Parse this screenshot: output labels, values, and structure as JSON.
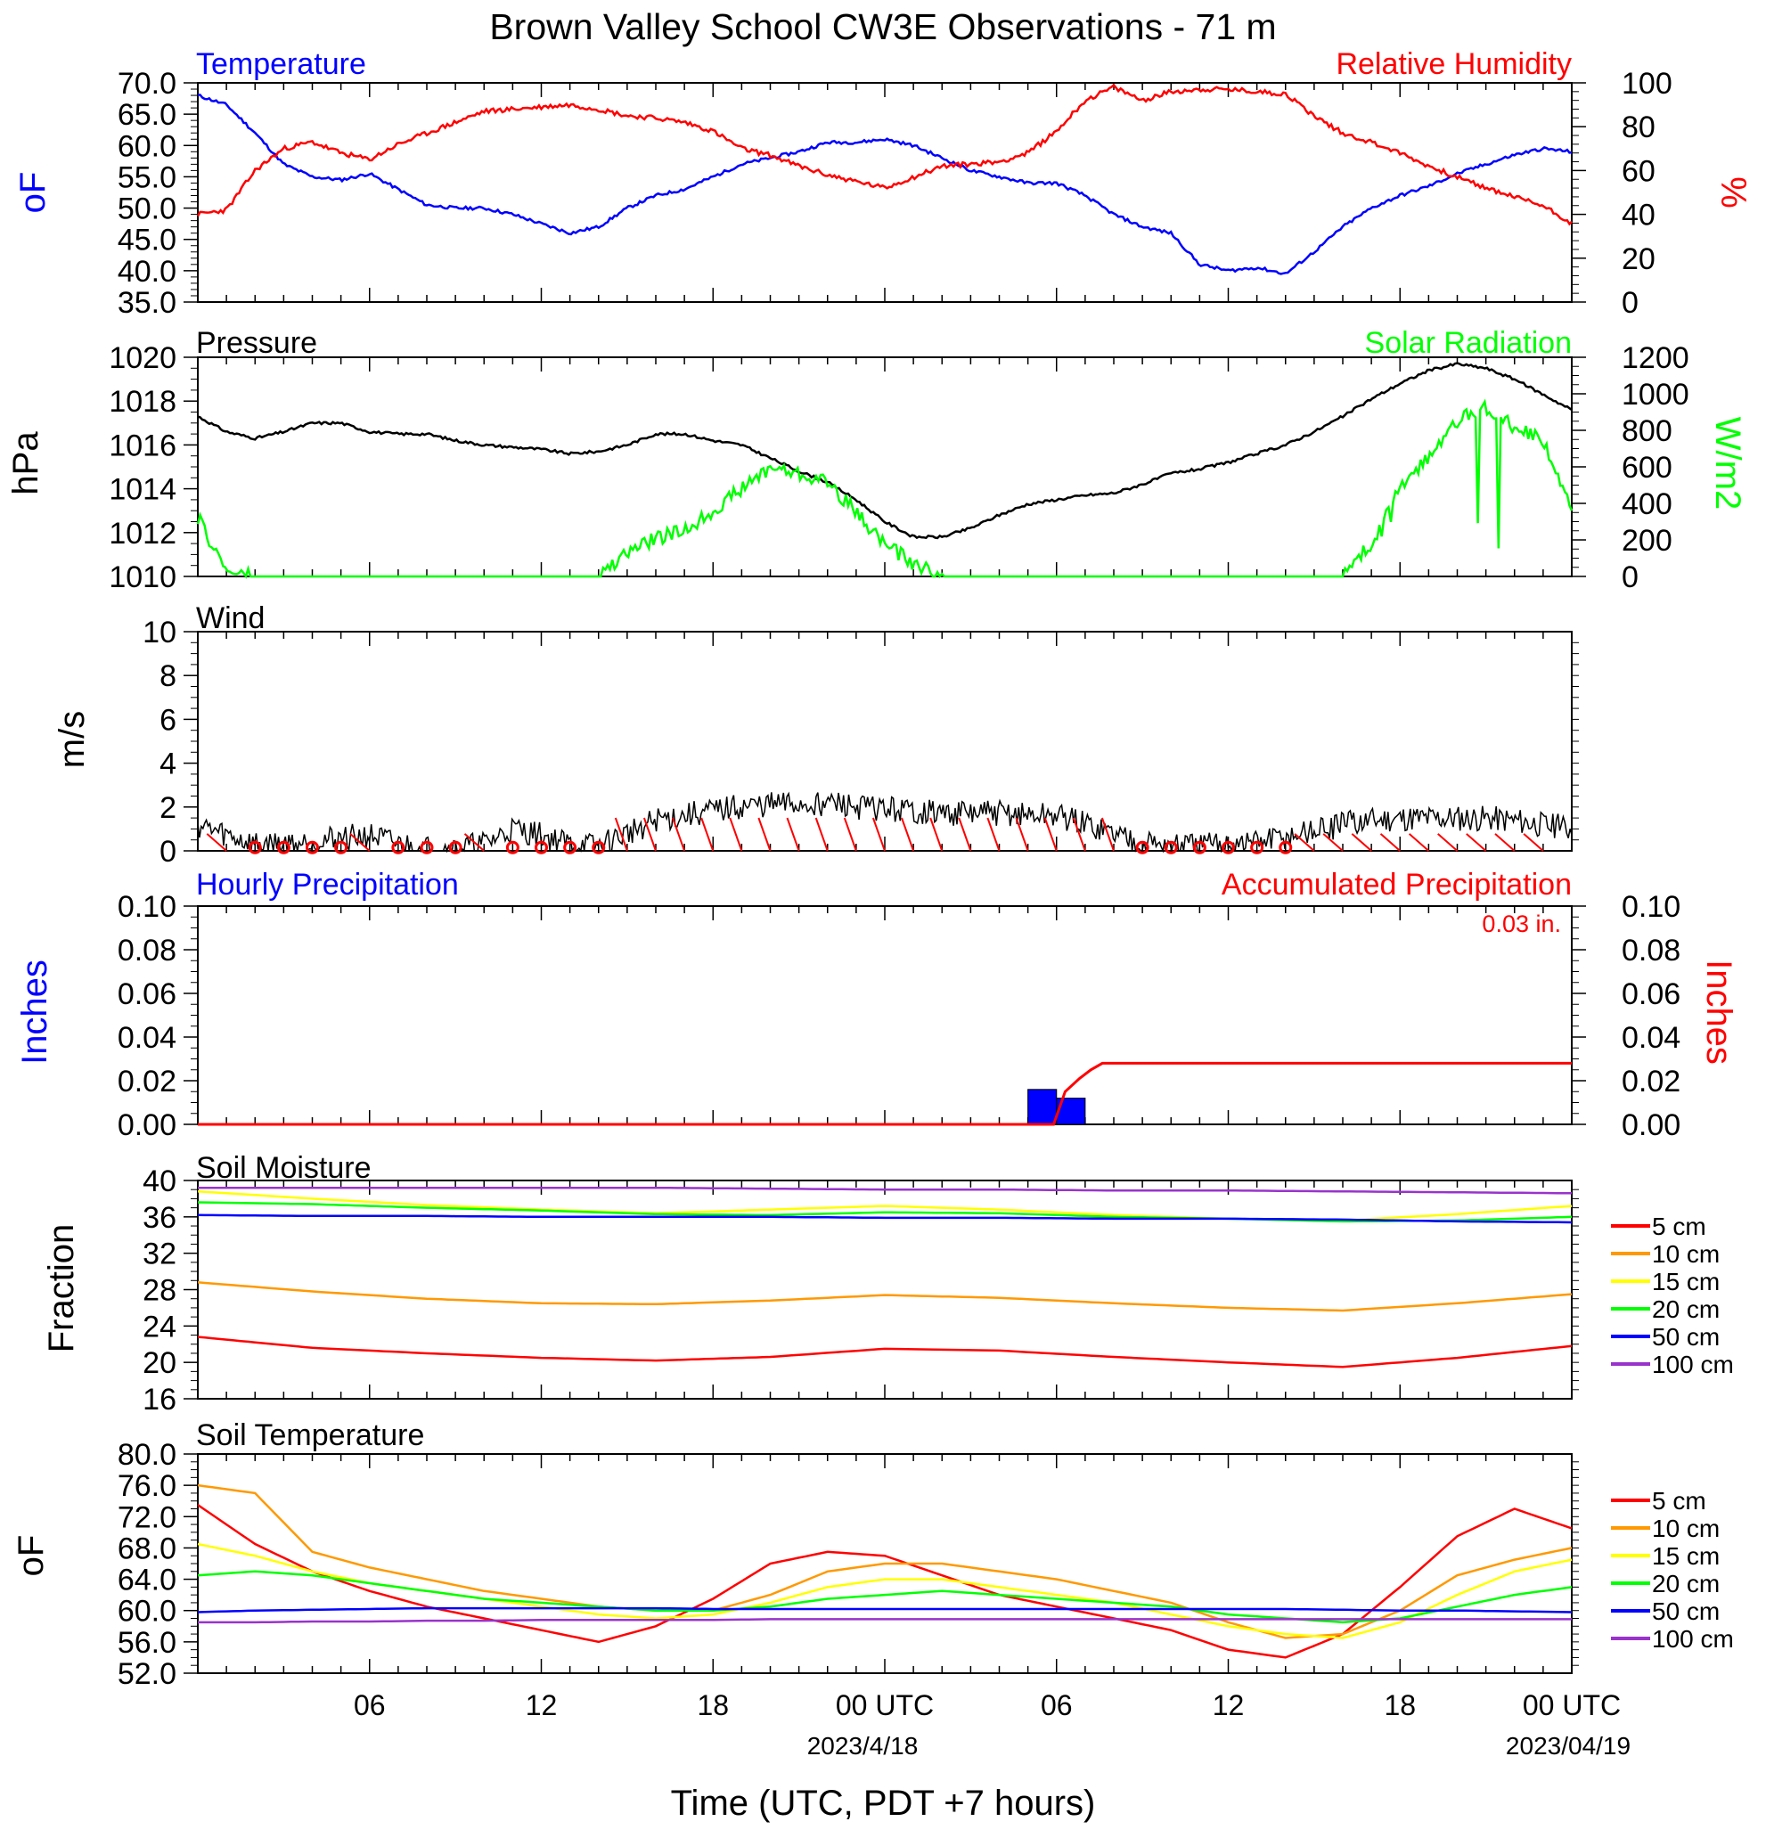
{
  "title": "Brown Valley School CW3E Observations - 71 m",
  "x_axis": {
    "label": "Time (UTC, PDT +7 hours)",
    "ticks": [
      "06",
      "12",
      "18",
      "00 UTC",
      "06",
      "12",
      "18",
      "00 UTC"
    ],
    "dates": [
      "2023/4/18",
      "2023/04/19"
    ],
    "range_hours": [
      0,
      48
    ]
  },
  "colors": {
    "temperature": "#0000ff",
    "humidity": "#ff0000",
    "pressure": "#000000",
    "solar": "#00ff00",
    "wind": "#000000",
    "barb": "#ff0000",
    "precip_hourly": "#0000ff",
    "precip_accum": "#ff0000",
    "depth_5": "#ff0000",
    "depth_10": "#ff9900",
    "depth_15": "#ffff00",
    "depth_20": "#00ff00",
    "depth_50": "#0000ff",
    "depth_100": "#9933cc"
  },
  "panels": {
    "temp_rh": {
      "left_title": "Temperature",
      "right_title": "Relative Humidity",
      "left_unit": "oF",
      "right_unit": "%",
      "left_ticks": [
        "70.0",
        "65.0",
        "60.0",
        "55.0",
        "50.0",
        "45.0",
        "40.0",
        "35.0"
      ],
      "right_ticks": [
        "100",
        "80",
        "60",
        "40",
        "20",
        "0"
      ]
    },
    "pressure_solar": {
      "left_title": "Pressure",
      "right_title": "Solar Radiation",
      "left_unit": "hPa",
      "right_unit": "W/m2",
      "left_ticks": [
        "1020",
        "1018",
        "1016",
        "1014",
        "1012",
        "1010"
      ],
      "right_ticks": [
        "1200",
        "1000",
        "800",
        "600",
        "400",
        "200",
        "0"
      ]
    },
    "wind": {
      "left_title": "Wind",
      "left_unit": "m/s",
      "left_ticks": [
        "10",
        "8",
        "6",
        "4",
        "2",
        "0"
      ]
    },
    "precip": {
      "left_title": "Hourly Precipitation",
      "right_title": "Accumulated Precipitation",
      "total": "0.03 in.",
      "left_unit": "Inches",
      "right_unit": "Inches",
      "left_ticks": [
        "0.10",
        "0.08",
        "0.06",
        "0.04",
        "0.02",
        "0.00"
      ],
      "right_ticks": [
        "0.10",
        "0.08",
        "0.06",
        "0.04",
        "0.02",
        "0.00"
      ]
    },
    "soil_moisture": {
      "left_title": "Soil Moisture",
      "left_unit": "Fraction",
      "left_ticks": [
        "40",
        "36",
        "32",
        "28",
        "24",
        "20",
        "16"
      ],
      "legend": [
        "5 cm",
        "10 cm",
        "15 cm",
        "20 cm",
        "50 cm",
        "100 cm"
      ]
    },
    "soil_temp": {
      "left_title": "Soil Temperature",
      "left_unit": "oF",
      "left_ticks": [
        "80.0",
        "76.0",
        "72.0",
        "68.0",
        "64.0",
        "60.0",
        "56.0",
        "52.0"
      ],
      "legend": [
        "5 cm",
        "10 cm",
        "15 cm",
        "20 cm",
        "50 cm",
        "100 cm"
      ]
    }
  },
  "chart_data": [
    {
      "type": "line",
      "title": "Temperature / Relative Humidity",
      "x_hours": [
        0,
        1,
        2,
        3,
        4,
        5,
        6,
        7,
        8,
        9,
        10,
        11,
        12,
        13,
        14,
        15,
        16,
        17,
        18,
        19,
        20,
        21,
        22,
        23,
        24,
        25,
        26,
        27,
        28,
        29,
        30,
        31,
        32,
        33,
        34,
        35,
        36,
        37,
        38,
        39,
        40,
        41,
        42,
        43,
        44,
        45,
        46,
        47,
        48
      ],
      "series": [
        {
          "name": "Temperature",
          "axis": "left",
          "ylim": [
            35,
            70
          ],
          "values": [
            68,
            66.5,
            62,
            57,
            55,
            54.5,
            55.5,
            53,
            50.5,
            50,
            50,
            49,
            47.5,
            46,
            47,
            50,
            52,
            53,
            55,
            57,
            58,
            59,
            60.5,
            60.5,
            61,
            60,
            58,
            56,
            55,
            54,
            54,
            52,
            49,
            47,
            46,
            41,
            40,
            40.5,
            39.5,
            43,
            47,
            50,
            52,
            53.5,
            55.5,
            57,
            58.5,
            59.5,
            59
          ]
        },
        {
          "name": "Relative Humidity",
          "axis": "right",
          "ylim": [
            0,
            100
          ],
          "values": [
            40,
            42,
            60,
            70,
            73,
            68,
            65,
            72,
            77,
            82,
            87,
            88,
            89,
            90,
            88,
            85,
            84,
            82,
            78,
            70,
            67,
            62,
            58,
            55,
            52,
            57,
            62,
            63,
            64,
            68,
            78,
            92,
            98,
            92,
            96,
            97,
            97,
            96,
            95,
            85,
            77,
            73,
            68,
            62,
            57,
            52,
            48,
            44,
            36
          ]
        }
      ]
    },
    {
      "type": "line",
      "title": "Pressure / Solar Radiation",
      "x_hours": [
        0,
        1,
        2,
        3,
        4,
        5,
        6,
        7,
        8,
        9,
        10,
        11,
        12,
        13,
        14,
        15,
        16,
        17,
        18,
        19,
        20,
        21,
        22,
        23,
        24,
        25,
        26,
        27,
        28,
        29,
        30,
        31,
        32,
        33,
        34,
        35,
        36,
        37,
        38,
        39,
        40,
        41,
        42,
        43,
        44,
        45,
        46,
        47,
        48
      ],
      "series": [
        {
          "name": "Pressure",
          "axis": "left",
          "ylim": [
            1010,
            1020
          ],
          "values": [
            1017.3,
            1016.6,
            1016.3,
            1016.6,
            1017,
            1017,
            1016.6,
            1016.5,
            1016.5,
            1016.2,
            1016,
            1015.9,
            1015.8,
            1015.6,
            1015.7,
            1016,
            1016.5,
            1016.5,
            1016.2,
            1016,
            1015.4,
            1014.8,
            1014.3,
            1013.5,
            1012.5,
            1011.8,
            1011.8,
            1012.2,
            1012.8,
            1013.3,
            1013.5,
            1013.7,
            1013.8,
            1014.2,
            1014.7,
            1014.9,
            1015.2,
            1015.6,
            1016,
            1016.6,
            1017.3,
            1018.1,
            1018.8,
            1019.4,
            1019.7,
            1019.5,
            1019,
            1018.3,
            1017.6
          ]
        },
        {
          "name": "Solar Radiation",
          "axis": "right",
          "ylim": [
            0,
            1200
          ],
          "values": [
            320,
            30,
            0,
            0,
            0,
            0,
            0,
            0,
            0,
            0,
            0,
            0,
            0,
            0,
            0,
            130,
            210,
            250,
            360,
            480,
            600,
            560,
            520,
            350,
            180,
            70,
            0,
            0,
            0,
            0,
            0,
            0,
            0,
            0,
            0,
            0,
            0,
            0,
            0,
            0,
            0,
            180,
            480,
            650,
            850,
            930,
            820,
            740,
            400
          ]
        }
      ]
    },
    {
      "type": "line",
      "title": "Wind",
      "x_hours": [
        0,
        1,
        2,
        3,
        4,
        5,
        6,
        7,
        8,
        9,
        10,
        11,
        12,
        13,
        14,
        15,
        16,
        17,
        18,
        19,
        20,
        21,
        22,
        23,
        24,
        25,
        26,
        27,
        28,
        29,
        30,
        31,
        32,
        33,
        34,
        35,
        36,
        37,
        38,
        39,
        40,
        41,
        42,
        43,
        44,
        45,
        46,
        47,
        48
      ],
      "ylim": [
        0,
        10
      ],
      "series": [
        {
          "name": "Wind speed",
          "values": [
            1.2,
            0.7,
            0.3,
            0.3,
            0.4,
            0.6,
            0.7,
            0.3,
            0.1,
            0.1,
            0.3,
            1,
            0.7,
            0.3,
            0.2,
            0.8,
            1.4,
            1.6,
            1.8,
            2,
            2.1,
            2.1,
            2.2,
            2,
            1.9,
            1.8,
            1.7,
            1.7,
            1.7,
            1.6,
            1.6,
            1.2,
            0.8,
            0.4,
            0.2,
            0.2,
            0.3,
            0.4,
            0.6,
            0.9,
            1.2,
            1.4,
            1.5,
            1.5,
            1.5,
            1.5,
            1.4,
            1.2,
            1
          ]
        }
      ],
      "calm_hours": [
        2,
        3,
        4,
        5,
        7,
        8,
        9,
        11,
        12,
        13,
        14,
        33,
        34,
        35,
        36,
        37,
        38
      ]
    },
    {
      "type": "bar",
      "title": "Hourly Precipitation / Accumulated Precipitation",
      "ylim": [
        0,
        0.1
      ],
      "hourly_bars": [
        {
          "hour": 29,
          "value": 0.016
        },
        {
          "hour": 30,
          "value": 0.012
        }
      ],
      "accum_x_hours": [
        0,
        29.9,
        30.3,
        30.8,
        31.2,
        31.6,
        48
      ],
      "accum_values": [
        0,
        0,
        0.015,
        0.021,
        0.025,
        0.028,
        0.028
      ]
    },
    {
      "type": "line",
      "title": "Soil Moisture",
      "x_hours": [
        0,
        4,
        8,
        12,
        16,
        20,
        24,
        28,
        32,
        36,
        40,
        44,
        48
      ],
      "ylim": [
        16,
        40
      ],
      "series": [
        {
          "name": "5 cm",
          "values": [
            22.8,
            21.6,
            21,
            20.5,
            20.2,
            20.6,
            21.5,
            21.3,
            20.6,
            20,
            19.5,
            20.5,
            21.8
          ]
        },
        {
          "name": "10 cm",
          "values": [
            28.8,
            27.8,
            27,
            26.5,
            26.4,
            26.8,
            27.4,
            27.1,
            26.5,
            26,
            25.7,
            26.5,
            27.5
          ]
        },
        {
          "name": "15 cm",
          "values": [
            38.8,
            38,
            37.3,
            36.8,
            36.4,
            36.8,
            37.2,
            36.8,
            36.2,
            35.8,
            35.6,
            36.3,
            37.2
          ]
        },
        {
          "name": "20 cm",
          "values": [
            37.6,
            37.4,
            37,
            36.7,
            36.3,
            36.2,
            36.5,
            36.4,
            36,
            35.8,
            35.5,
            35.6,
            36
          ]
        },
        {
          "name": "50 cm",
          "values": [
            36.2,
            36.1,
            36.1,
            36,
            36,
            36,
            35.9,
            35.9,
            35.8,
            35.8,
            35.7,
            35.5,
            35.4
          ]
        },
        {
          "name": "100 cm",
          "values": [
            39.2,
            39.2,
            39.2,
            39.2,
            39.2,
            39.1,
            39,
            39,
            38.9,
            38.9,
            38.8,
            38.7,
            38.6
          ]
        }
      ]
    },
    {
      "type": "line",
      "title": "Soil Temperature",
      "x_hours": [
        0,
        2,
        4,
        6,
        8,
        10,
        12,
        14,
        16,
        18,
        20,
        22,
        24,
        26,
        28,
        30,
        32,
        34,
        36,
        38,
        40,
        42,
        44,
        46,
        48
      ],
      "ylim": [
        52,
        80
      ],
      "series": [
        {
          "name": "5 cm",
          "values": [
            73.5,
            68.5,
            65,
            62.5,
            60.5,
            59,
            57.5,
            56,
            58,
            61.5,
            66,
            67.5,
            67,
            64.5,
            62,
            60.5,
            59,
            57.5,
            55,
            54,
            57,
            63,
            69.5,
            73,
            70.5
          ]
        },
        {
          "name": "10 cm",
          "values": [
            76,
            75,
            67.5,
            65.5,
            64,
            62.5,
            61.5,
            60.5,
            60,
            60,
            62,
            65,
            66,
            66,
            65,
            64,
            62.5,
            61,
            58.5,
            56.5,
            57,
            60,
            64.5,
            66.5,
            68
          ]
        },
        {
          "name": "15 cm",
          "values": [
            68.5,
            67,
            65,
            63.5,
            62.5,
            61.5,
            60.5,
            59.5,
            59,
            59.5,
            61,
            63,
            64,
            64,
            63,
            62,
            61,
            59.5,
            58,
            57,
            56.5,
            58.5,
            62,
            65,
            66.5
          ]
        },
        {
          "name": "20 cm",
          "values": [
            64.5,
            65,
            64.5,
            63.5,
            62.5,
            61.5,
            61,
            60.5,
            60,
            60,
            60.5,
            61.5,
            62,
            62.5,
            62,
            61.5,
            61,
            60.5,
            59.5,
            59,
            58.5,
            59,
            60.5,
            62,
            63
          ]
        },
        {
          "name": "50 cm",
          "values": [
            59.8,
            60,
            60.1,
            60.2,
            60.3,
            60.3,
            60.3,
            60.3,
            60.3,
            60.2,
            60.2,
            60.2,
            60.2,
            60.2,
            60.2,
            60.2,
            60.2,
            60.2,
            60.2,
            60.2,
            60.1,
            60,
            60,
            59.9,
            59.8
          ]
        },
        {
          "name": "100 cm",
          "values": [
            58.5,
            58.5,
            58.6,
            58.6,
            58.7,
            58.7,
            58.8,
            58.8,
            58.8,
            58.8,
            58.9,
            58.9,
            58.9,
            58.9,
            58.9,
            58.9,
            58.9,
            58.9,
            58.9,
            58.9,
            58.9,
            58.9,
            58.9,
            58.9,
            58.9
          ]
        }
      ]
    }
  ]
}
